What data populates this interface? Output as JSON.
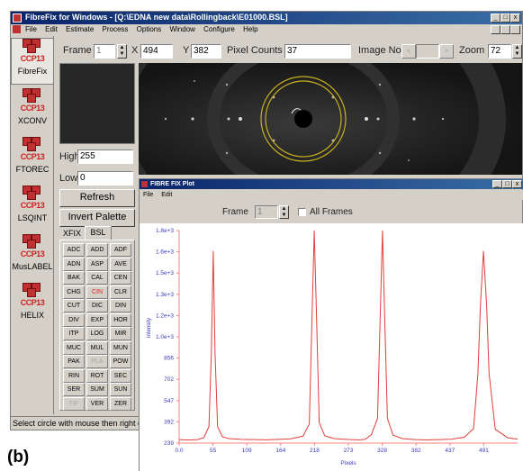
{
  "main_window": {
    "title": "FibreFix for Windows - [Q:\\EDNA new data\\Rollingback\\E01000.BSL]",
    "menu": [
      "File",
      "Edit",
      "Estimate",
      "Process",
      "Options",
      "Window",
      "Configure",
      "Help"
    ],
    "controls": {
      "min": "_",
      "max": "□",
      "close": "x"
    }
  },
  "toolbar": {
    "frame_label": "Frame",
    "frame_value": "1",
    "x_label": "X",
    "x_value": "494",
    "y_label": "Y",
    "y_value": "382",
    "pixel_counts_label": "Pixel Counts",
    "pixel_counts_value": "37",
    "image_no_label": "Image No",
    "zoom_label": "Zoom",
    "zoom_value": "72"
  },
  "apps": [
    {
      "logo": "CCP13",
      "label": "FibreFix"
    },
    {
      "logo": "CCP13",
      "label": "XCONV"
    },
    {
      "logo": "CCP13",
      "label": "FTOREC"
    },
    {
      "logo": "CCP13",
      "label": "LSQINT"
    },
    {
      "logo": "CCP13",
      "label": "MusLABEL"
    },
    {
      "logo": "CCP13",
      "label": "HELIX"
    }
  ],
  "palette": {
    "high_label": "High",
    "high_value": "255",
    "low_label": "Low",
    "low_value": "0",
    "refresh_label": "Refresh",
    "invert_label": "Invert Palette"
  },
  "tabs": [
    "XFIX",
    "BSL"
  ],
  "commands": [
    [
      "ADC",
      "ADD",
      "ADF"
    ],
    [
      "ADN",
      "ASP",
      "AVE"
    ],
    [
      "BAK",
      "CAL",
      "CEN"
    ],
    [
      "CHG",
      "CIN",
      "CLR"
    ],
    [
      "CUT",
      "DIC",
      "DIN"
    ],
    [
      "DIV",
      "EXP",
      "HOR"
    ],
    [
      "ITP",
      "LOG",
      "MIR"
    ],
    [
      "MUC",
      "MUL",
      "MUN"
    ],
    [
      "PAK",
      "PLA",
      "POW"
    ],
    [
      "RIN",
      "ROT",
      "SEC"
    ],
    [
      "SER",
      "SUM",
      "SUN"
    ],
    [
      "TIP",
      "VER",
      "ZER"
    ]
  ],
  "command_states": {
    "CIN": "highlighted",
    "PLA": "disabled",
    "TIP": "disabled"
  },
  "status_text": "Select circle with mouse then right c",
  "figure_label": "(b)",
  "plot_window": {
    "title": "FIBRE FIX Plot",
    "menu": [
      "File",
      "Edit"
    ],
    "frame_label": "Frame",
    "frame_value": "1",
    "all_frames_label": "All Frames",
    "controls": {
      "min": "_",
      "max": "□",
      "close": "x"
    }
  },
  "colors": {
    "accent_titlebar": "#0a246a",
    "plot_line": "#e0403a",
    "logo_red": "#d02020",
    "axis_label_blue": "#3a3ac0"
  },
  "chart_data": {
    "type": "line",
    "xlabel": "Pixels",
    "ylabel": "Intensity",
    "x_ticks": [
      "0.0",
      "55",
      "109",
      "164",
      "218",
      "273",
      "328",
      "382",
      "437",
      "491"
    ],
    "y_ticks": [
      "239",
      "392",
      "547",
      "702",
      "856",
      "1.0e+3",
      "1.2e+3",
      "1.3e+3",
      "1.5e+3",
      "1.6e+3",
      "1.8e+3"
    ],
    "xlim": [
      0,
      546
    ],
    "ylim": [
      239,
      1800
    ],
    "grid": false,
    "series": [
      {
        "x": [
          0,
          10,
          20,
          30,
          40,
          48,
          52,
          55,
          58,
          62,
          70,
          80,
          100,
          120,
          140,
          160,
          180,
          200,
          210,
          214,
          218,
          222,
          226,
          235,
          250,
          270,
          290,
          300,
          310,
          320,
          324,
          328,
          332,
          336,
          345,
          360,
          380,
          400,
          420,
          440,
          460,
          475,
          482,
          486,
          491,
          496,
          500,
          510,
          530,
          546
        ],
        "values": [
          265,
          262,
          262,
          265,
          280,
          360,
          900,
          1650,
          900,
          360,
          285,
          272,
          266,
          265,
          263,
          266,
          270,
          290,
          380,
          1100,
          1800,
          1100,
          390,
          292,
          272,
          266,
          262,
          266,
          300,
          420,
          1100,
          1800,
          1100,
          420,
          298,
          272,
          265,
          262,
          265,
          268,
          282,
          345,
          750,
          1250,
          1650,
          1250,
          750,
          340,
          278,
          268
        ]
      }
    ]
  }
}
